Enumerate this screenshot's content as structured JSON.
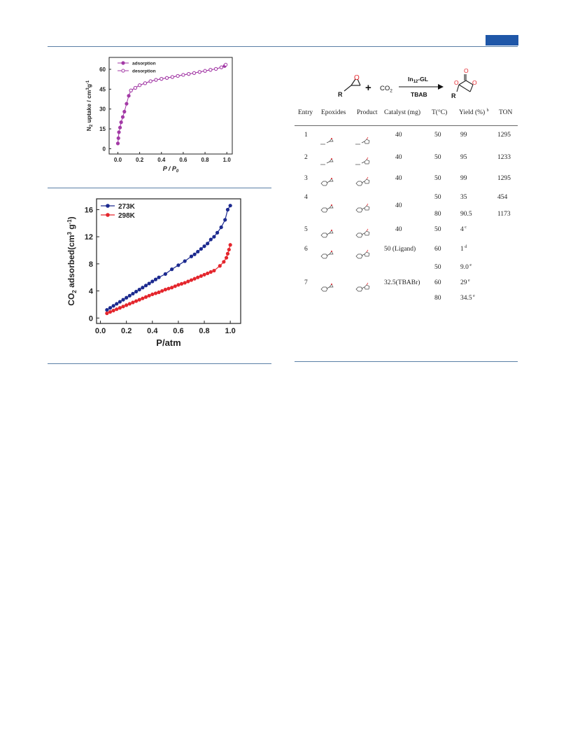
{
  "header": {
    "accent_color": "#1f57a8"
  },
  "figures": [
    {
      "id": "n2",
      "chart_data": {
        "type": "scatter",
        "xlabel": "P / P",
        "xlabel_sub": "0",
        "ylabel": "N",
        "ylabel_sub": "2",
        "ylabel_rest": " uptake / cm",
        "ylabel_sup": "3",
        "ylabel_tail": "g",
        "ylabel_sup2": "-1",
        "xlim": [
          -0.08,
          1.05
        ],
        "ylim": [
          -4,
          69
        ],
        "xticks": [
          "0.0",
          "0.2",
          "0.4",
          "0.6",
          "0.8",
          "1.0"
        ],
        "yticks": [
          "0",
          "15",
          "30",
          "45",
          "60"
        ],
        "series": [
          {
            "name": "adsorption",
            "color": "#a33aa6",
            "marker": "filled",
            "x": [
              0.0,
              0.005,
              0.01,
              0.02,
              0.03,
              0.045,
              0.06,
              0.08,
              0.1,
              0.12,
              0.16,
              0.2,
              0.25,
              0.3,
              0.35,
              0.4,
              0.45,
              0.5,
              0.55,
              0.6,
              0.65,
              0.7,
              0.75,
              0.8,
              0.85,
              0.9,
              0.95,
              0.98
            ],
            "y": [
              4,
              8,
              12.5,
              16,
              20,
              24,
              28,
              34,
              40,
              44,
              46,
              48,
              49.5,
              51,
              52,
              52.8,
              53.5,
              54.2,
              55,
              55.8,
              56.5,
              57.2,
              58,
              58.8,
              59.6,
              60.3,
              61.5,
              62.5
            ]
          },
          {
            "name": "desorption",
            "color": "#a33aa6",
            "marker": "open",
            "x": [
              0.99,
              0.95,
              0.9,
              0.85,
              0.8,
              0.75,
              0.7,
              0.65,
              0.6,
              0.55,
              0.5,
              0.45,
              0.4,
              0.35,
              0.3,
              0.25,
              0.2,
              0.16,
              0.12
            ],
            "y": [
              63.5,
              61.5,
              60.3,
              59.6,
              58.8,
              58,
              57.2,
              56.5,
              55.8,
              55,
              54.2,
              53.5,
              52.8,
              52,
              51,
              49.5,
              48,
              46,
              44
            ]
          }
        ]
      }
    },
    {
      "id": "co2",
      "chart_data": {
        "type": "line",
        "xlabel": "P/atm",
        "ylabel_pre": "CO",
        "ylabel_sub": "2",
        "ylabel_mid": " adsorbed(cm",
        "ylabel_sup": "3",
        "ylabel_mid2": " g",
        "ylabel_sup2": "-1",
        "ylabel_end": ")",
        "xlim": [
          -0.03,
          1.08
        ],
        "ylim": [
          -0.8,
          17.6
        ],
        "xticks": [
          "0.0",
          "0.2",
          "0.4",
          "0.6",
          "0.8",
          "1.0"
        ],
        "yticks": [
          "0",
          "4",
          "8",
          "12",
          "16"
        ],
        "series": [
          {
            "name": "273K",
            "color": "#1c2a8f",
            "x": [
              0.05,
              0.075,
              0.1,
              0.125,
              0.15,
              0.175,
              0.2,
              0.225,
              0.25,
              0.275,
              0.3,
              0.325,
              0.35,
              0.375,
              0.4,
              0.425,
              0.45,
              0.5,
              0.55,
              0.6,
              0.65,
              0.7,
              0.725,
              0.75,
              0.775,
              0.8,
              0.825,
              0.85,
              0.875,
              0.9,
              0.93,
              0.96,
              0.98,
              1.0
            ],
            "y": [
              1.2,
              1.5,
              1.8,
              2.1,
              2.4,
              2.7,
              3.0,
              3.3,
              3.6,
              3.9,
              4.2,
              4.5,
              4.8,
              5.1,
              5.4,
              5.7,
              6.0,
              6.5,
              7.2,
              7.8,
              8.4,
              9.1,
              9.4,
              9.8,
              10.2,
              10.6,
              11.0,
              11.6,
              12.0,
              12.6,
              13.4,
              14.5,
              16.0,
              16.6
            ]
          },
          {
            "name": "298K",
            "color": "#e4262d",
            "x": [
              0.05,
              0.075,
              0.1,
              0.125,
              0.15,
              0.175,
              0.2,
              0.225,
              0.25,
              0.275,
              0.3,
              0.325,
              0.35,
              0.375,
              0.4,
              0.425,
              0.45,
              0.475,
              0.5,
              0.525,
              0.55,
              0.575,
              0.6,
              0.625,
              0.65,
              0.675,
              0.7,
              0.725,
              0.75,
              0.775,
              0.8,
              0.825,
              0.85,
              0.875,
              0.92,
              0.95,
              0.97,
              0.98,
              0.99,
              1.0
            ],
            "y": [
              0.7,
              0.9,
              1.1,
              1.3,
              1.5,
              1.7,
              1.9,
              2.1,
              2.3,
              2.5,
              2.7,
              2.9,
              3.1,
              3.3,
              3.5,
              3.65,
              3.8,
              4.0,
              4.2,
              4.35,
              4.5,
              4.7,
              4.9,
              5.05,
              5.2,
              5.4,
              5.6,
              5.8,
              6.0,
              6.2,
              6.4,
              6.6,
              6.8,
              7.0,
              7.7,
              8.3,
              8.9,
              9.5,
              10.1,
              10.8
            ]
          }
        ]
      }
    }
  ],
  "scheme": {
    "reactant_label": "R",
    "oxygen": "O",
    "plus": "+",
    "co2": "CO",
    "co2_sub": "2",
    "catalyst": "In",
    "catalyst_sub": "12",
    "catalyst_tail": "-GL",
    "additive": "TBAB",
    "product_R": "R",
    "product_O1": "O",
    "product_O2": "O",
    "product_O3": "O"
  },
  "table": {
    "headers": [
      "Entry",
      "Epoxides",
      "Product",
      "Catalyst (mg)",
      "T(°C)",
      "Yield (%)",
      "TON"
    ],
    "yield_header_sup": "b",
    "rows": [
      {
        "entry": "1",
        "catalyst": "40",
        "T": "50",
        "yield": "99",
        "sup": "",
        "ton": "1295"
      },
      {
        "entry": "2",
        "catalyst": "40",
        "T": "50",
        "yield": "95",
        "sup": "",
        "ton": "1233"
      },
      {
        "entry": "3",
        "catalyst": "40",
        "T": "50",
        "yield": "99",
        "sup": "",
        "ton": "1295"
      },
      {
        "entry": "4",
        "catalyst": "40",
        "T": "50",
        "yield": "35",
        "sup": "",
        "ton": "454"
      },
      {
        "entry": "",
        "catalyst": "",
        "T": "80",
        "yield": "90.5",
        "sup": "",
        "ton": "1173"
      },
      {
        "entry": "5",
        "catalyst": "40",
        "T": "50",
        "yield": "4",
        "sup": "c",
        "ton": ""
      },
      {
        "entry": "6",
        "catalyst": "50 (Ligand)",
        "T": "60",
        "yield": "1",
        "sup": "d",
        "ton": ""
      },
      {
        "entry": "",
        "catalyst": "",
        "T": "50",
        "yield": "9.0",
        "sup": "e",
        "ton": ""
      },
      {
        "entry": "7",
        "catalyst": "32.5(TBABr)",
        "T": "60",
        "yield": "29",
        "sup": "e",
        "ton": ""
      },
      {
        "entry": "",
        "catalyst": "",
        "T": "80",
        "yield": "34.5",
        "sup": "e",
        "ton": ""
      }
    ]
  }
}
